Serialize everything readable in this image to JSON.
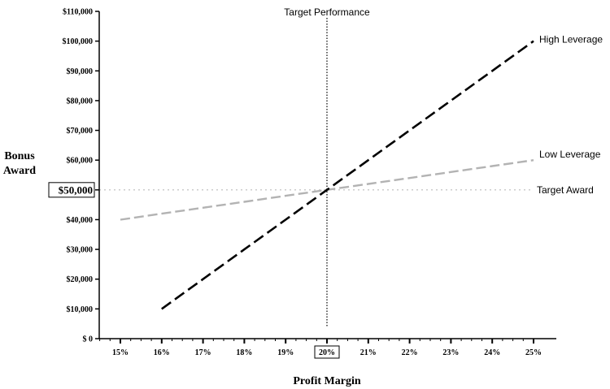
{
  "chart_data": {
    "type": "line",
    "xlabel": "Profit Margin",
    "ylabel": [
      "Bonus",
      "Award"
    ],
    "x": [
      15,
      16,
      17,
      18,
      19,
      20,
      21,
      22,
      23,
      24,
      25
    ],
    "x_tick_labels": [
      "15%",
      "16%",
      "17%",
      "18%",
      "19%",
      "20%",
      "21%",
      "22%",
      "23%",
      "24%",
      "25%"
    ],
    "ylim": [
      0,
      110000
    ],
    "y_ticks": [
      0,
      10000,
      20000,
      30000,
      40000,
      50000,
      60000,
      70000,
      80000,
      90000,
      100000,
      110000
    ],
    "y_tick_labels": [
      "$ 0",
      "$10,000",
      "$20,000",
      "$30,000",
      "$40,000",
      "$50,000",
      "$60,000",
      "$70,000",
      "$80,000",
      "$90,000",
      "$100,000",
      "$110,000"
    ],
    "highlighted_y_tick": 50000,
    "highlighted_x_tick": 20,
    "grid": false,
    "series": [
      {
        "name": "High Leverage",
        "color": "#000000",
        "style": "dashed",
        "points": [
          [
            16,
            10000
          ],
          [
            17,
            20000
          ],
          [
            18,
            30000
          ],
          [
            19,
            40000
          ],
          [
            20,
            50000
          ],
          [
            21,
            60000
          ],
          [
            22,
            70000
          ],
          [
            23,
            80000
          ],
          [
            24,
            90000
          ],
          [
            25,
            100000
          ]
        ]
      },
      {
        "name": "Low Leverage",
        "color": "#b3b3b3",
        "style": "dashed",
        "points": [
          [
            15,
            40000
          ],
          [
            16,
            42000
          ],
          [
            17,
            44000
          ],
          [
            18,
            46000
          ],
          [
            19,
            48000
          ],
          [
            20,
            50000
          ],
          [
            21,
            52000
          ],
          [
            22,
            54000
          ],
          [
            23,
            56000
          ],
          [
            24,
            58000
          ],
          [
            25,
            60000
          ]
        ]
      }
    ],
    "reference_lines": {
      "target_performance": {
        "label": "Target Performance",
        "x": 20,
        "color": "#000000",
        "style": "dotted"
      },
      "target_award": {
        "label": "Target Award",
        "y": 50000,
        "color": "#bbbbbb",
        "style": "dotted"
      }
    }
  }
}
